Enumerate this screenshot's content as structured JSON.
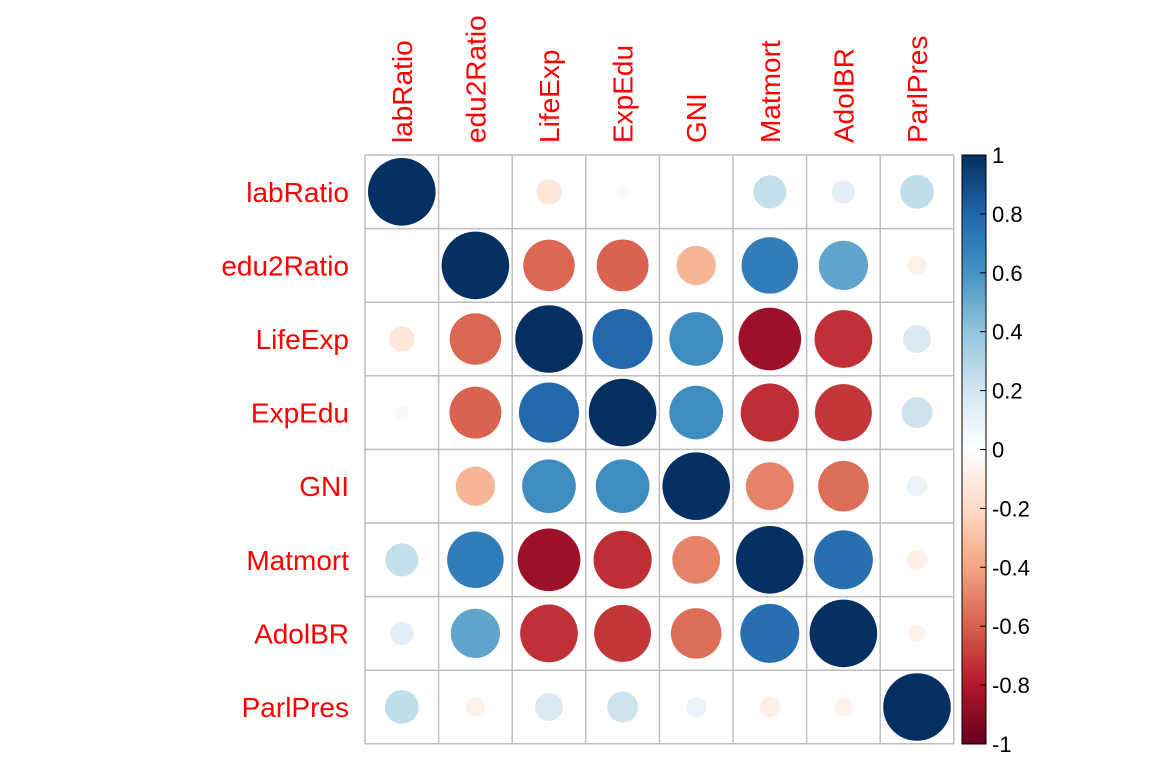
{
  "chart_data": {
    "type": "heatmap",
    "variables": [
      "labRatio",
      "edu2Ratio",
      "LifeExp",
      "ExpEdu",
      "GNI",
      "Matmort",
      "AdolBR",
      "ParlPres"
    ],
    "matrix": [
      [
        1.0,
        0.01,
        -0.14,
        0.04,
        0.01,
        0.24,
        0.12,
        0.25
      ],
      [
        0.01,
        1.0,
        -0.58,
        -0.59,
        -0.34,
        0.7,
        0.53,
        -0.08
      ],
      [
        -0.14,
        -0.58,
        1.0,
        0.79,
        0.63,
        -0.86,
        -0.73,
        0.17
      ],
      [
        0.04,
        -0.59,
        0.79,
        1.0,
        0.63,
        -0.74,
        -0.71,
        0.21
      ],
      [
        0.01,
        -0.34,
        0.63,
        0.63,
        1.0,
        -0.5,
        -0.56,
        0.09
      ],
      [
        0.24,
        0.7,
        -0.86,
        -0.74,
        -0.5,
        1.0,
        0.76,
        -0.09
      ],
      [
        0.12,
        0.53,
        -0.73,
        -0.71,
        -0.56,
        0.76,
        1.0,
        -0.07
      ],
      [
        0.25,
        -0.08,
        0.17,
        0.21,
        0.09,
        -0.09,
        -0.07,
        1.0
      ]
    ],
    "colorbar_ticks": [
      "1",
      "0.8",
      "0.6",
      "0.4",
      "0.2",
      "0",
      "-0.2",
      "-0.4",
      "-0.6",
      "-0.8",
      "-1"
    ],
    "range": [
      -1,
      1
    ],
    "label_color": "#ff0000",
    "palette": [
      "#67001f",
      "#b2182b",
      "#d6604d",
      "#f4a582",
      "#fddbc7",
      "#ffffff",
      "#d1e5f0",
      "#92c5de",
      "#4393c3",
      "#2166ac",
      "#053061"
    ]
  }
}
